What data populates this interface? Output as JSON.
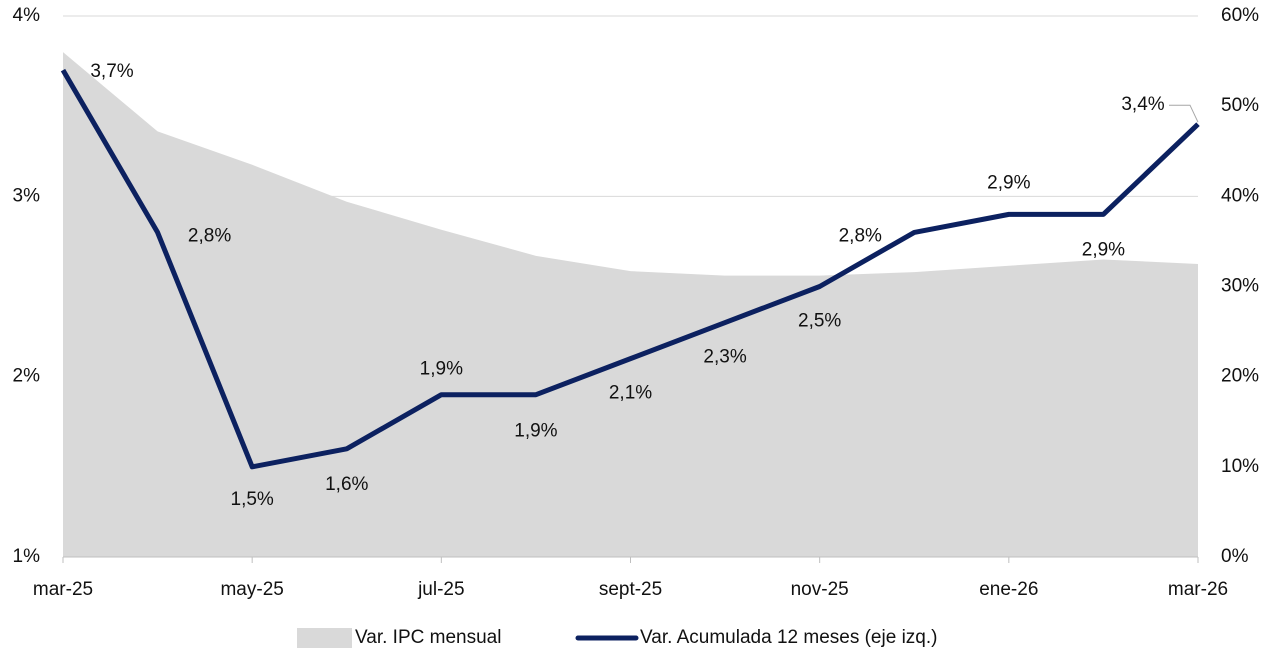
{
  "chart_data": {
    "type": "line",
    "categories": [
      "mar-25",
      null,
      "may-25",
      null,
      "jul-25",
      null,
      "sept-25",
      null,
      "nov-25",
      null,
      "ene-26",
      null,
      "mar-26"
    ],
    "series": [
      {
        "name": "Var. IPC mensual",
        "type": "area",
        "axis": "y2",
        "color": "#d9d9d9",
        "values": [
          56,
          47.2,
          43.5,
          39.4,
          36.3,
          33.4,
          31.7,
          31.2,
          31.2,
          31.6,
          32.3,
          33,
          32.5
        ]
      },
      {
        "name": "Var. Acumulada 12 meses (eje izq.)",
        "type": "line",
        "color": "#0c2160",
        "values": [
          3.7,
          2.8,
          1.5,
          1.6,
          1.9,
          1.9,
          2.1,
          2.3,
          2.5,
          2.8,
          2.9,
          2.9,
          3.4
        ],
        "value_labels": [
          "3,7%",
          "2,8%",
          "1,5%",
          "1,6%",
          "1,9%",
          "1,9%",
          "2,1%",
          "2,3%",
          "2,5%",
          "2,8%",
          "2,9%",
          "2,9%",
          "3,4%"
        ]
      }
    ],
    "ylim": [
      1,
      4
    ],
    "yticks": [
      {
        "value": 1,
        "label": "1%"
      },
      {
        "value": 2,
        "label": "2%"
      },
      {
        "value": 3,
        "label": "3%"
      },
      {
        "value": 4,
        "label": "4%"
      }
    ],
    "y2lim": [
      0,
      60
    ],
    "y2ticks": [
      {
        "value": 0,
        "label": "0%"
      },
      {
        "value": 10,
        "label": "10%"
      },
      {
        "value": 20,
        "label": "20%"
      },
      {
        "value": 30,
        "label": "30%"
      },
      {
        "value": 40,
        "label": "40%"
      },
      {
        "value": 50,
        "label": "50%"
      },
      {
        "value": 60,
        "label": "60%"
      }
    ],
    "grid": true,
    "legend": "bottom"
  }
}
